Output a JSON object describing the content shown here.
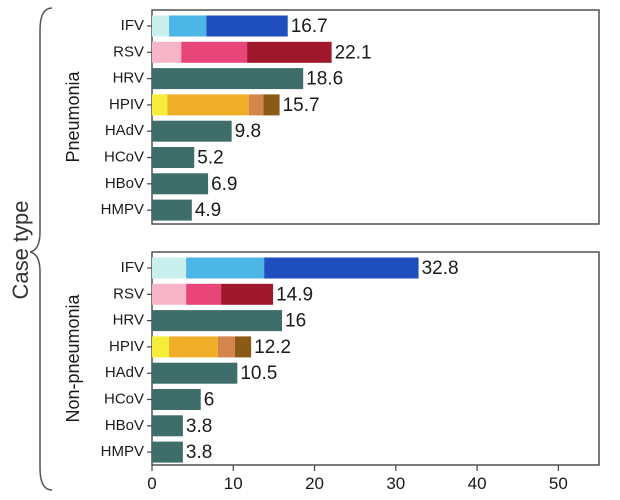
{
  "chart_data": {
    "type": "bar",
    "orientation": "horizontal",
    "stacked": true,
    "y_axis_title": "Case type",
    "xlim": [
      0,
      55
    ],
    "x_ticks": [
      "0",
      "10",
      "20",
      "30",
      "40",
      "50"
    ],
    "grid": false,
    "categories": [
      "IFV",
      "RSV",
      "HRV",
      "HPIV",
      "HAdV",
      "HCoV",
      "HBoV",
      "HMPV"
    ],
    "panels": [
      {
        "label": "Pneumonia",
        "bars": [
          {
            "category": "IFV",
            "total_label": "16.7",
            "segments": [
              {
                "value": 2.1,
                "color": "#c9f0ec"
              },
              {
                "value": 4.6,
                "color": "#4cb6e6"
              },
              {
                "value": 10.0,
                "color": "#1f4fbf"
              }
            ]
          },
          {
            "category": "RSV",
            "total_label": "22.1",
            "segments": [
              {
                "value": 3.6,
                "color": "#f6b6c7"
              },
              {
                "value": 8.1,
                "color": "#e8457a"
              },
              {
                "value": 10.4,
                "color": "#a0182b"
              }
            ]
          },
          {
            "category": "HRV",
            "total_label": "18.6",
            "segments": [
              {
                "value": 18.6,
                "color": "#3f6e6a"
              }
            ]
          },
          {
            "category": "HPIV",
            "total_label": "15.7",
            "segments": [
              {
                "value": 1.9,
                "color": "#f4ee3a"
              },
              {
                "value": 10.0,
                "color": "#f0ad28"
              },
              {
                "value": 1.8,
                "color": "#d4854a"
              },
              {
                "value": 2.0,
                "color": "#8b5a14"
              }
            ]
          },
          {
            "category": "HAdV",
            "total_label": "9.8",
            "segments": [
              {
                "value": 9.8,
                "color": "#3f6e6a"
              }
            ]
          },
          {
            "category": "HCoV",
            "total_label": "5.2",
            "segments": [
              {
                "value": 5.2,
                "color": "#3f6e6a"
              }
            ]
          },
          {
            "category": "HBoV",
            "total_label": "6.9",
            "segments": [
              {
                "value": 6.9,
                "color": "#3f6e6a"
              }
            ]
          },
          {
            "category": "HMPV",
            "total_label": "4.9",
            "segments": [
              {
                "value": 4.9,
                "color": "#3f6e6a"
              }
            ]
          }
        ]
      },
      {
        "label": "Non-pneumonia",
        "bars": [
          {
            "category": "IFV",
            "total_label": "32.8",
            "segments": [
              {
                "value": 4.2,
                "color": "#c9f0ec"
              },
              {
                "value": 9.6,
                "color": "#4cb6e6"
              },
              {
                "value": 19.0,
                "color": "#1f4fbf"
              }
            ]
          },
          {
            "category": "RSV",
            "total_label": "14.9",
            "segments": [
              {
                "value": 4.2,
                "color": "#f6b6c7"
              },
              {
                "value": 4.3,
                "color": "#e8457a"
              },
              {
                "value": 6.4,
                "color": "#a0182b"
              }
            ]
          },
          {
            "category": "HRV",
            "total_label": "16",
            "segments": [
              {
                "value": 16.0,
                "color": "#3f6e6a"
              }
            ]
          },
          {
            "category": "HPIV",
            "total_label": "12.2",
            "segments": [
              {
                "value": 2.1,
                "color": "#f4ee3a"
              },
              {
                "value": 6.0,
                "color": "#f0ad28"
              },
              {
                "value": 2.1,
                "color": "#d4854a"
              },
              {
                "value": 2.0,
                "color": "#8b5a14"
              }
            ]
          },
          {
            "category": "HAdV",
            "total_label": "10.5",
            "segments": [
              {
                "value": 10.5,
                "color": "#3f6e6a"
              }
            ]
          },
          {
            "category": "HCoV",
            "total_label": "6",
            "segments": [
              {
                "value": 6.0,
                "color": "#3f6e6a"
              }
            ]
          },
          {
            "category": "HBoV",
            "total_label": "3.8",
            "segments": [
              {
                "value": 3.8,
                "color": "#3f6e6a"
              }
            ]
          },
          {
            "category": "HMPV",
            "total_label": "3.8",
            "segments": [
              {
                "value": 3.8,
                "color": "#3f6e6a"
              }
            ]
          }
        ]
      }
    ]
  }
}
